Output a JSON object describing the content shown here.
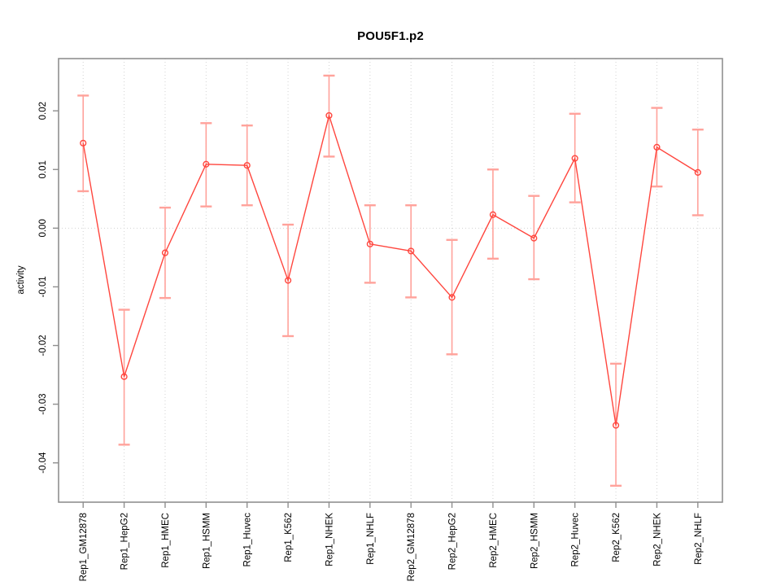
{
  "page": {
    "background": "#ffffff"
  },
  "chart_data": {
    "type": "line",
    "title": "POU5F1.p2",
    "ylabel": "activity",
    "xlabel": "",
    "categories": [
      "Rep1_GM12878",
      "Rep1_HepG2",
      "Rep1_HMEC",
      "Rep1_HSMM",
      "Rep1_Huvec",
      "Rep1_K562",
      "Rep1_NHEK",
      "Rep1_NHLF",
      "Rep2_GM12878",
      "Rep2_HepG2",
      "Rep2_HMEC",
      "Rep2_HSMM",
      "Rep2_Huvec",
      "Rep2_K562",
      "Rep2_NHEK",
      "Rep2_NHLF"
    ],
    "series": [
      {
        "name": "activity",
        "values": [
          0.0145,
          -0.0253,
          -0.0042,
          0.0109,
          0.0107,
          -0.0089,
          0.0192,
          -0.0027,
          -0.0039,
          -0.0118,
          0.0023,
          -0.0017,
          0.0119,
          -0.0336,
          0.0138,
          0.0095
        ],
        "error_high": [
          0.0226,
          -0.0139,
          0.0035,
          0.0179,
          0.0175,
          0.0006,
          0.026,
          0.0039,
          0.0039,
          -0.002,
          0.01,
          0.0055,
          0.0195,
          -0.0231,
          0.0205,
          0.0168
        ],
        "error_low": [
          0.0063,
          -0.0369,
          -0.0119,
          0.0037,
          0.0039,
          -0.0184,
          0.0122,
          -0.0093,
          -0.0118,
          -0.0215,
          -0.0052,
          -0.0087,
          0.0044,
          -0.0439,
          0.0071,
          0.0022
        ]
      }
    ],
    "ylim": [
      -0.0467,
      0.0289
    ],
    "yticks": [
      0.02,
      0.01,
      0,
      -0.01,
      -0.02,
      -0.03,
      -0.04
    ],
    "ytick_labels": [
      "0.02",
      "0.01",
      "0.00",
      "-0.01",
      "-0.02",
      "-0.03",
      "-0.04"
    ],
    "grid": {
      "vertical": "each-category",
      "horizontal_at": [
        0
      ],
      "style": "dotted"
    },
    "legend": null,
    "marker": "open-circle",
    "colors": {
      "series": "#ff463e",
      "error_bar": "#ffa29b",
      "frame": "#8f8f8f",
      "tick": "#8f8f8f",
      "grid": "#d2d2d2",
      "text": "#000000",
      "background": "#ffffff"
    }
  }
}
